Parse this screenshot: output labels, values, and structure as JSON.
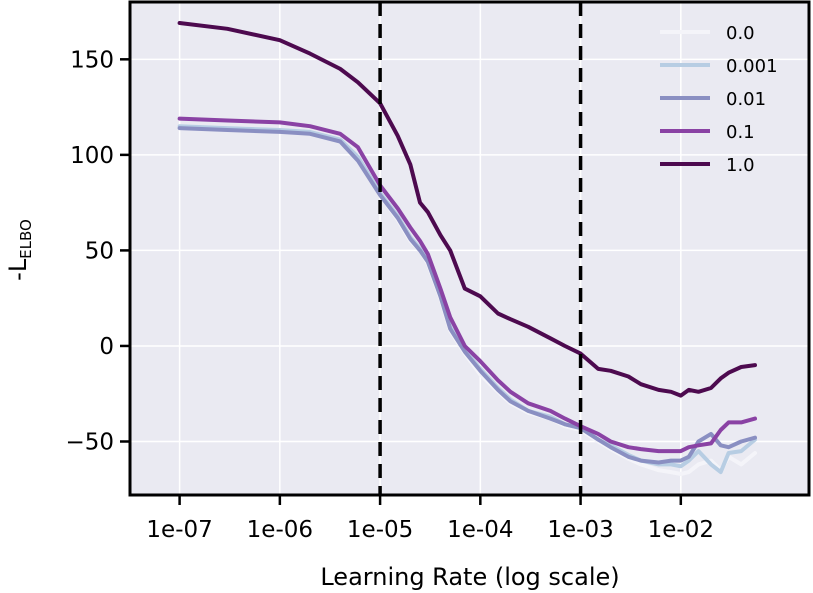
{
  "chart_data": {
    "type": "line",
    "xlabel": "Learning Rate (log scale)",
    "ylabel_main": "-L",
    "ylabel_sub": "ELBO",
    "x_scale": "log",
    "x_ticks": [
      1e-07,
      1e-06,
      1e-05,
      0.0001,
      0.001,
      0.01
    ],
    "x_tick_labels": [
      "1e-07",
      "1e-06",
      "1e-05",
      "1e-04",
      "1e-03",
      "1e-02"
    ],
    "y_ticks": [
      -50,
      0,
      50,
      100,
      150
    ],
    "y_tick_labels": [
      "−50",
      "0",
      "50",
      "100",
      "150"
    ],
    "xlim": [
      3.2e-08,
      0.19
    ],
    "ylim": [
      -78,
      180
    ],
    "grid": true,
    "legend_position": "top-right",
    "vertical_lines": [
      1e-05,
      0.001
    ],
    "vertical_line_style": "dashed",
    "colors": {
      "background": "#eaeaf2",
      "grid": "#ffffff",
      "frame": "#000000",
      "vline": "#000000"
    },
    "series": [
      {
        "name": "0.0",
        "color": "#f4f4f9",
        "x": [
          1e-07,
          3e-07,
          1e-06,
          2e-06,
          4e-06,
          6e-06,
          1e-05,
          1.5e-05,
          2e-05,
          2.5e-05,
          3e-05,
          4e-05,
          5e-05,
          7e-05,
          0.0001,
          0.00015,
          0.0002,
          0.0003,
          0.0005,
          0.0007,
          0.001,
          0.0015,
          0.002,
          0.003,
          0.004,
          0.006,
          0.008,
          0.01,
          0.012,
          0.015,
          0.02,
          0.025,
          0.03,
          0.04,
          0.055
        ],
        "y": [
          115,
          114,
          113,
          112,
          108,
          98,
          79,
          66,
          55,
          50,
          43,
          25,
          8,
          -4,
          -15,
          -24,
          -30,
          -35,
          -38,
          -42,
          -44,
          -50,
          -54,
          -59,
          -62,
          -65,
          -66,
          -67,
          -66,
          -62,
          -60,
          -65,
          -58,
          -62,
          -56
        ]
      },
      {
        "name": "0.001",
        "color": "#b7cde3",
        "x": [
          1e-07,
          3e-07,
          1e-06,
          2e-06,
          4e-06,
          6e-06,
          1e-05,
          1.5e-05,
          2e-05,
          2.5e-05,
          3e-05,
          4e-05,
          5e-05,
          7e-05,
          0.0001,
          0.00015,
          0.0002,
          0.0003,
          0.0005,
          0.0007,
          0.001,
          0.0015,
          0.002,
          0.003,
          0.004,
          0.006,
          0.008,
          0.01,
          0.012,
          0.015,
          0.02,
          0.025,
          0.03,
          0.04,
          0.055
        ],
        "y": [
          115,
          114,
          113,
          112,
          108,
          99,
          80,
          68,
          57,
          51,
          45,
          27,
          10,
          -2,
          -12,
          -22,
          -28,
          -34,
          -37,
          -41,
          -43,
          -49,
          -52,
          -57,
          -60,
          -62,
          -62,
          -63,
          -60,
          -55,
          -62,
          -66,
          -56,
          -55,
          -49
        ]
      },
      {
        "name": "0.01",
        "color": "#8a8fc2",
        "x": [
          1e-07,
          3e-07,
          1e-06,
          2e-06,
          4e-06,
          6e-06,
          1e-05,
          1.5e-05,
          2e-05,
          2.5e-05,
          3e-05,
          4e-05,
          5e-05,
          7e-05,
          0.0001,
          0.00015,
          0.0002,
          0.0003,
          0.0005,
          0.0007,
          0.001,
          0.0015,
          0.002,
          0.003,
          0.004,
          0.006,
          0.008,
          0.01,
          0.012,
          0.015,
          0.02,
          0.025,
          0.03,
          0.04,
          0.055
        ],
        "y": [
          114,
          113,
          112,
          111,
          107,
          97,
          79,
          67,
          56,
          50,
          44,
          26,
          9,
          -3,
          -13,
          -23,
          -29,
          -34,
          -38,
          -41,
          -43,
          -49,
          -53,
          -58,
          -60,
          -61,
          -60,
          -60,
          -58,
          -50,
          -46,
          -52,
          -53,
          -50,
          -48
        ]
      },
      {
        "name": "0.1",
        "color": "#8a42a4",
        "x": [
          1e-07,
          3e-07,
          1e-06,
          2e-06,
          4e-06,
          6e-06,
          1e-05,
          1.5e-05,
          2e-05,
          2.5e-05,
          3e-05,
          4e-05,
          5e-05,
          7e-05,
          0.0001,
          0.00015,
          0.0002,
          0.0003,
          0.0005,
          0.0007,
          0.001,
          0.0015,
          0.002,
          0.003,
          0.004,
          0.006,
          0.008,
          0.01,
          0.012,
          0.015,
          0.02,
          0.025,
          0.03,
          0.04,
          0.055
        ],
        "y": [
          119,
          118,
          117,
          115,
          111,
          104,
          84,
          72,
          62,
          55,
          48,
          30,
          15,
          0,
          -8,
          -18,
          -24,
          -30,
          -34,
          -38,
          -42,
          -46,
          -50,
          -53,
          -54,
          -55,
          -55,
          -55,
          -53,
          -52,
          -51,
          -44,
          -40,
          -40,
          -38
        ]
      },
      {
        "name": "1.0",
        "color": "#4d0a4f",
        "x": [
          1e-07,
          3e-07,
          1e-06,
          2e-06,
          4e-06,
          6e-06,
          1e-05,
          1.5e-05,
          2e-05,
          2.5e-05,
          3e-05,
          4e-05,
          5e-05,
          7e-05,
          0.0001,
          0.00015,
          0.0002,
          0.0003,
          0.0005,
          0.0007,
          0.001,
          0.0015,
          0.002,
          0.003,
          0.004,
          0.006,
          0.008,
          0.01,
          0.012,
          0.015,
          0.02,
          0.025,
          0.03,
          0.04,
          0.055
        ],
        "y": [
          169,
          166,
          160,
          153,
          145,
          138,
          127,
          110,
          95,
          75,
          70,
          58,
          50,
          30,
          26,
          17,
          14,
          10,
          4,
          0,
          -4,
          -12,
          -13,
          -16,
          -20,
          -23,
          -24,
          -26,
          -23,
          -24,
          -22,
          -17,
          -14,
          -11,
          -10
        ]
      }
    ]
  }
}
